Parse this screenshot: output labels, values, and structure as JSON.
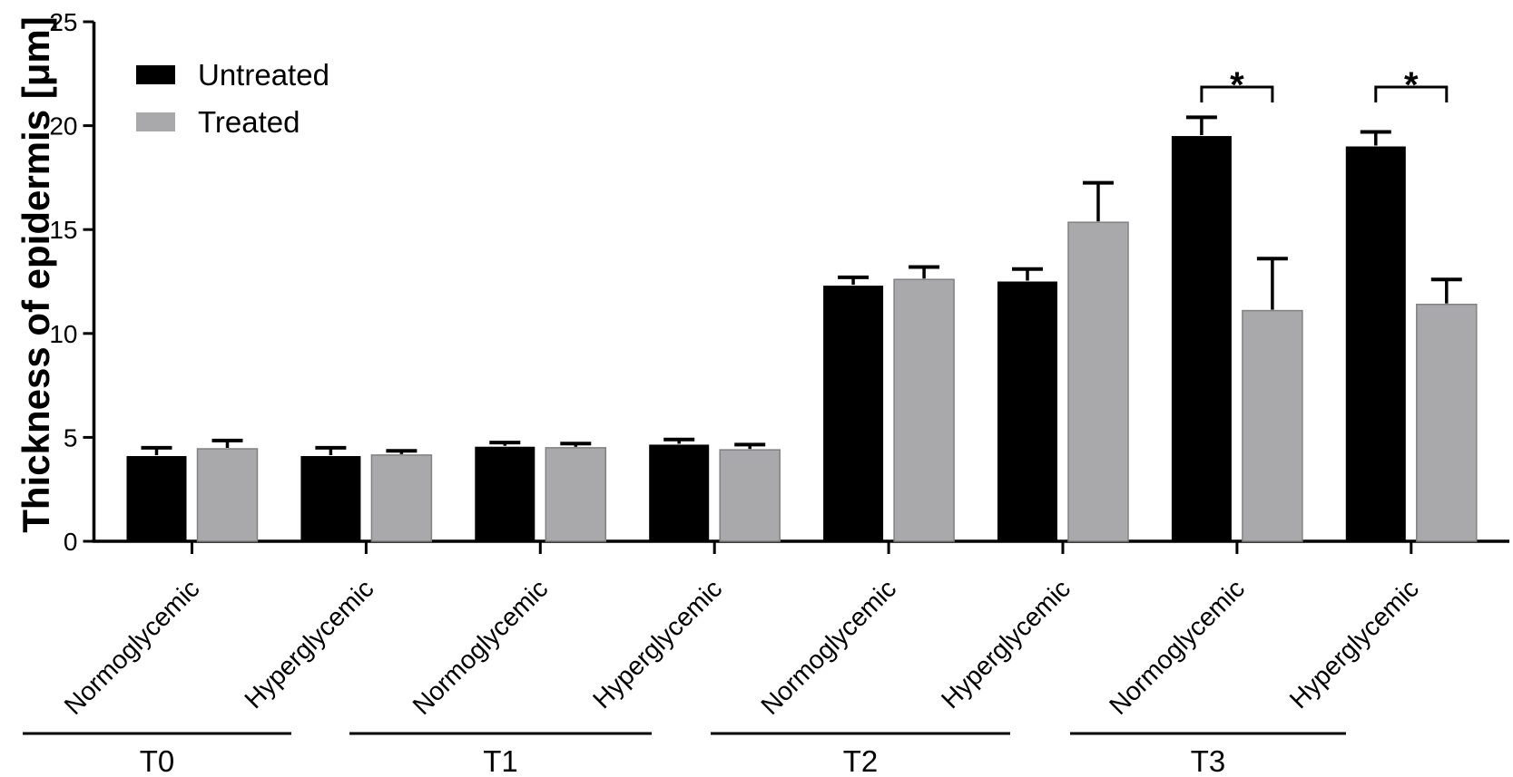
{
  "chart_data": {
    "type": "bar",
    "title": "",
    "ylabel": "Thickness of epidermis [μm]",
    "xlabel": "",
    "ylim": [
      0,
      25
    ],
    "yticks": [
      0,
      5,
      10,
      15,
      20,
      25
    ],
    "grid": false,
    "legend_position": "top-left",
    "series": [
      {
        "name": "Untreated",
        "color": "#000000"
      },
      {
        "name": "Treated",
        "color": "#a9a9ac"
      }
    ],
    "groups": [
      {
        "label": "T0",
        "pairs": [
          {
            "category": "Normoglycemic",
            "untreated": {
              "value": 4.1,
              "err": 0.4
            },
            "treated": {
              "value": 4.45,
              "err": 0.4
            },
            "significant": false,
            "sig_label": ""
          },
          {
            "category": "Hyperglycemic",
            "untreated": {
              "value": 4.1,
              "err": 0.4
            },
            "treated": {
              "value": 4.15,
              "err": 0.2
            },
            "significant": false,
            "sig_label": ""
          }
        ]
      },
      {
        "label": "T1",
        "pairs": [
          {
            "category": "Normoglycemic",
            "untreated": {
              "value": 4.55,
              "err": 0.2
            },
            "treated": {
              "value": 4.5,
              "err": 0.2
            },
            "significant": false,
            "sig_label": ""
          },
          {
            "category": "Hyperglycemic",
            "untreated": {
              "value": 4.65,
              "err": 0.25
            },
            "treated": {
              "value": 4.4,
              "err": 0.25
            },
            "significant": false,
            "sig_label": ""
          }
        ]
      },
      {
        "label": "T2",
        "pairs": [
          {
            "category": "Normoglycemic",
            "untreated": {
              "value": 12.3,
              "err": 0.4
            },
            "treated": {
              "value": 12.6,
              "err": 0.6
            },
            "significant": false,
            "sig_label": ""
          },
          {
            "category": "Hyperglycemic",
            "untreated": {
              "value": 12.5,
              "err": 0.6
            },
            "treated": {
              "value": 15.35,
              "err": 1.9
            },
            "significant": false,
            "sig_label": ""
          }
        ]
      },
      {
        "label": "T3",
        "pairs": [
          {
            "category": "Normoglycemic",
            "untreated": {
              "value": 19.5,
              "err": 0.9
            },
            "treated": {
              "value": 11.1,
              "err": 2.5
            },
            "significant": true,
            "sig_label": "*"
          },
          {
            "category": "Hyperglycemic",
            "untreated": {
              "value": 19.0,
              "err": 0.7
            },
            "treated": {
              "value": 11.4,
              "err": 1.2
            },
            "significant": true,
            "sig_label": "*"
          }
        ]
      }
    ]
  }
}
